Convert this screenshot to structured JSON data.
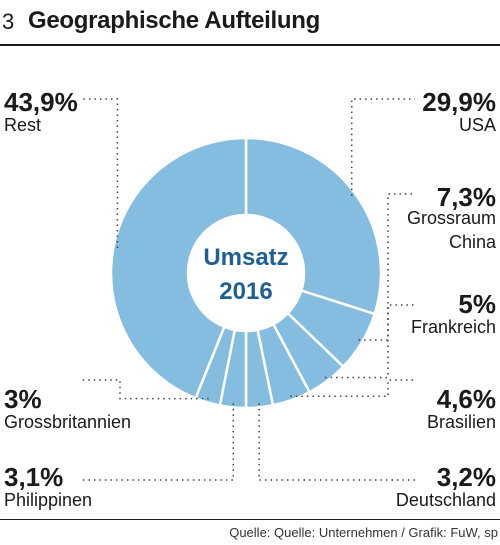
{
  "header": {
    "number": "3",
    "title": "Geographische Aufteilung"
  },
  "source": "Quelle: Quelle: Unternehmen / Grafik: FuW, sp",
  "colors": {
    "slice": "#85bde0",
    "separator": "#ffffff",
    "leader": "#444444",
    "center_text": "#1f5f96"
  },
  "chart_data": {
    "type": "pie",
    "variant": "donut",
    "center_label": [
      "Umsatz",
      "2016"
    ],
    "slices": [
      {
        "label": "USA",
        "value_label": "29,9%",
        "value": 29.9
      },
      {
        "label": "Grossraum China",
        "label_lines": [
          "Grossraum",
          "China"
        ],
        "value_label": "7,3%",
        "value": 7.3
      },
      {
        "label": "Frankreich",
        "value_label": "5%",
        "value": 5.0
      },
      {
        "label": "Brasilien",
        "value_label": "4,6%",
        "value": 4.6
      },
      {
        "label": "Deutschland",
        "value_label": "3,2%",
        "value": 3.2
      },
      {
        "label": "Philippinen",
        "value_label": "3,1%",
        "value": 3.1
      },
      {
        "label": "Grossbritannien",
        "value_label": "3%",
        "value": 3.0
      },
      {
        "label": "Rest",
        "value_label": "43,9%",
        "value": 43.9
      }
    ]
  }
}
